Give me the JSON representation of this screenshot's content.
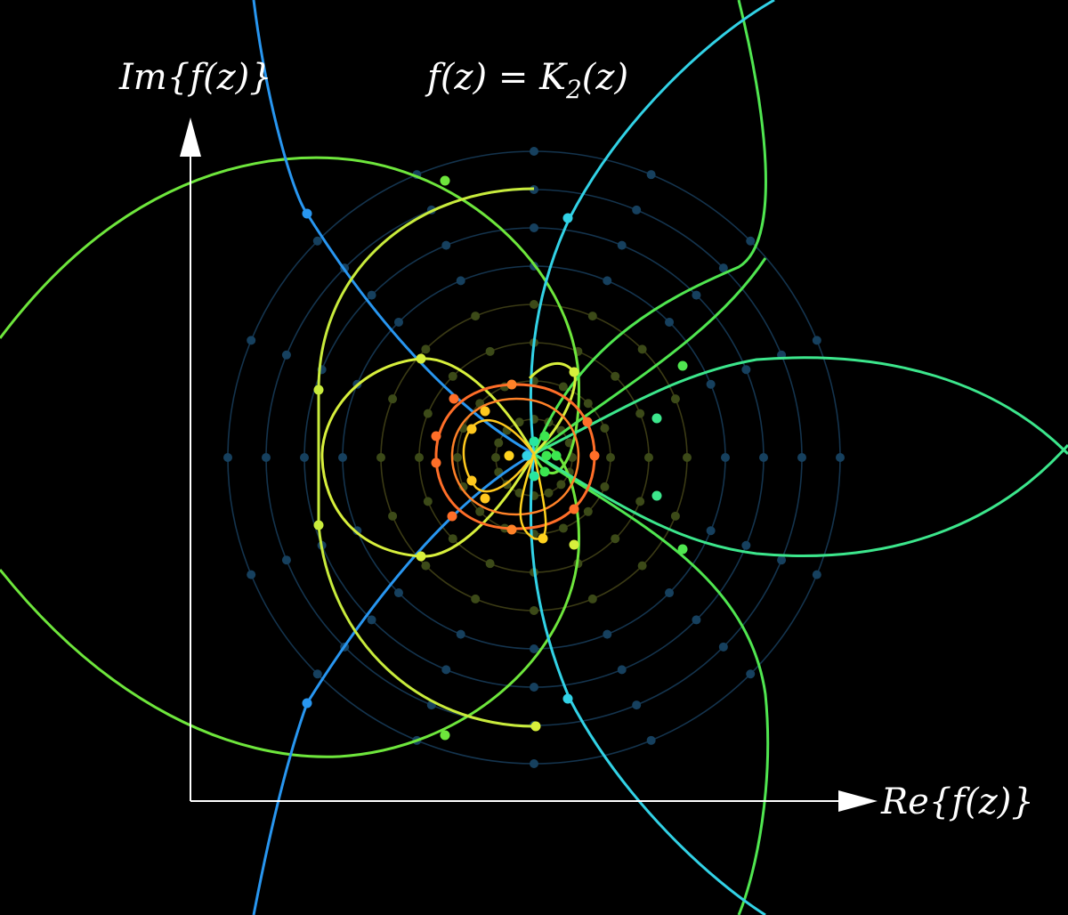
{
  "title": {
    "f": "f",
    "open_paren": "(",
    "z": "z",
    "close_paren_eq": ") = ",
    "K": "K",
    "subscript": "2",
    "arg": "(z)"
  },
  "axes": {
    "y_label": {
      "prefix": "Im{",
      "f": "f",
      "arg": "(z)",
      "suffix": "}"
    },
    "x_label": {
      "prefix": "Re{",
      "f": "f",
      "arg": "(z)",
      "suffix": "}"
    }
  },
  "colors": {
    "background": "#000000",
    "axis": "#ffffff",
    "grid_faint": "#1e3c5a",
    "red": "#ff5a1e",
    "orange": "#ff8c1e",
    "yellow": "#ffd21e",
    "yellow_green": "#d2f03c",
    "green": "#78eb3c",
    "bright_green": "#3ce650",
    "teal_green": "#28e6a0",
    "cyan": "#32dcdc",
    "blue": "#2896f0"
  }
}
